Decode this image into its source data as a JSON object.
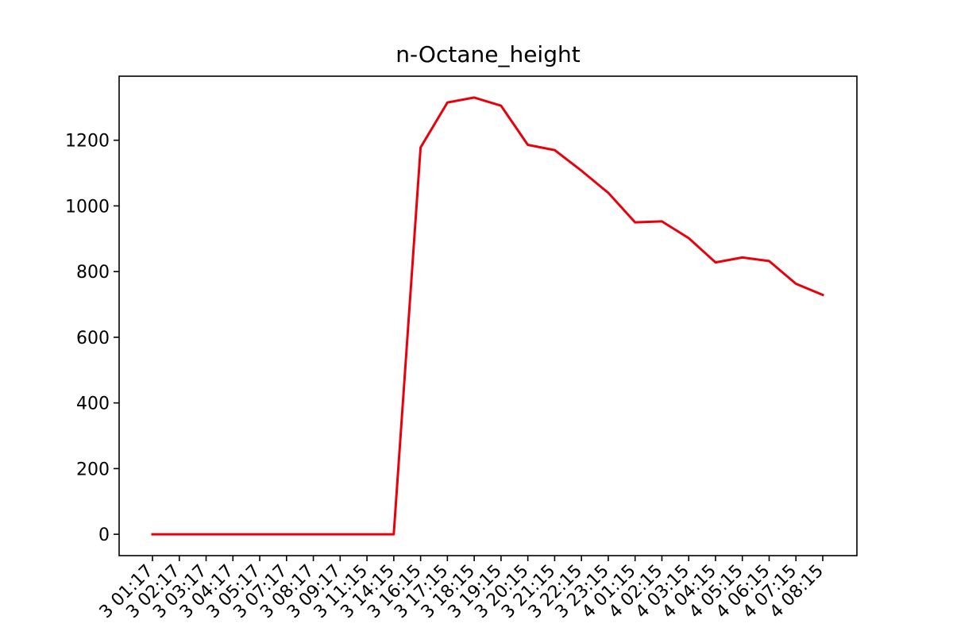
{
  "chart_data": {
    "type": "line",
    "title": "n-Octane_height",
    "xlabel": "",
    "ylabel": "",
    "x": [
      "3 01:17",
      "3 02:17",
      "3 03:17",
      "3 04:17",
      "3 05:17",
      "3 07:17",
      "3 08:17",
      "3 09:17",
      "3 11:15",
      "3 14:15",
      "3 16:15",
      "3 17:15",
      "3 18:15",
      "3 19:15",
      "3 20:15",
      "3 21:15",
      "3 22:15",
      "3 23:15",
      "4 01:15",
      "4 02:15",
      "4 03:15",
      "4 04:15",
      "4 05:15",
      "4 06:15",
      "4 07:15",
      "4 08:15"
    ],
    "series": [
      {
        "values": [
          0,
          0,
          0,
          0,
          0,
          0,
          0,
          0,
          0,
          0,
          1178,
          1315,
          1330,
          1305,
          1186,
          1170,
          1107,
          1040,
          950,
          953,
          902,
          828,
          843,
          832,
          763,
          729
        ],
        "color": "#e8000b"
      }
    ],
    "ylim": [
      -65,
      1395
    ],
    "yticks": [
      0,
      200,
      400,
      600,
      800,
      1000,
      1200
    ],
    "grid": false,
    "legend": "none"
  }
}
